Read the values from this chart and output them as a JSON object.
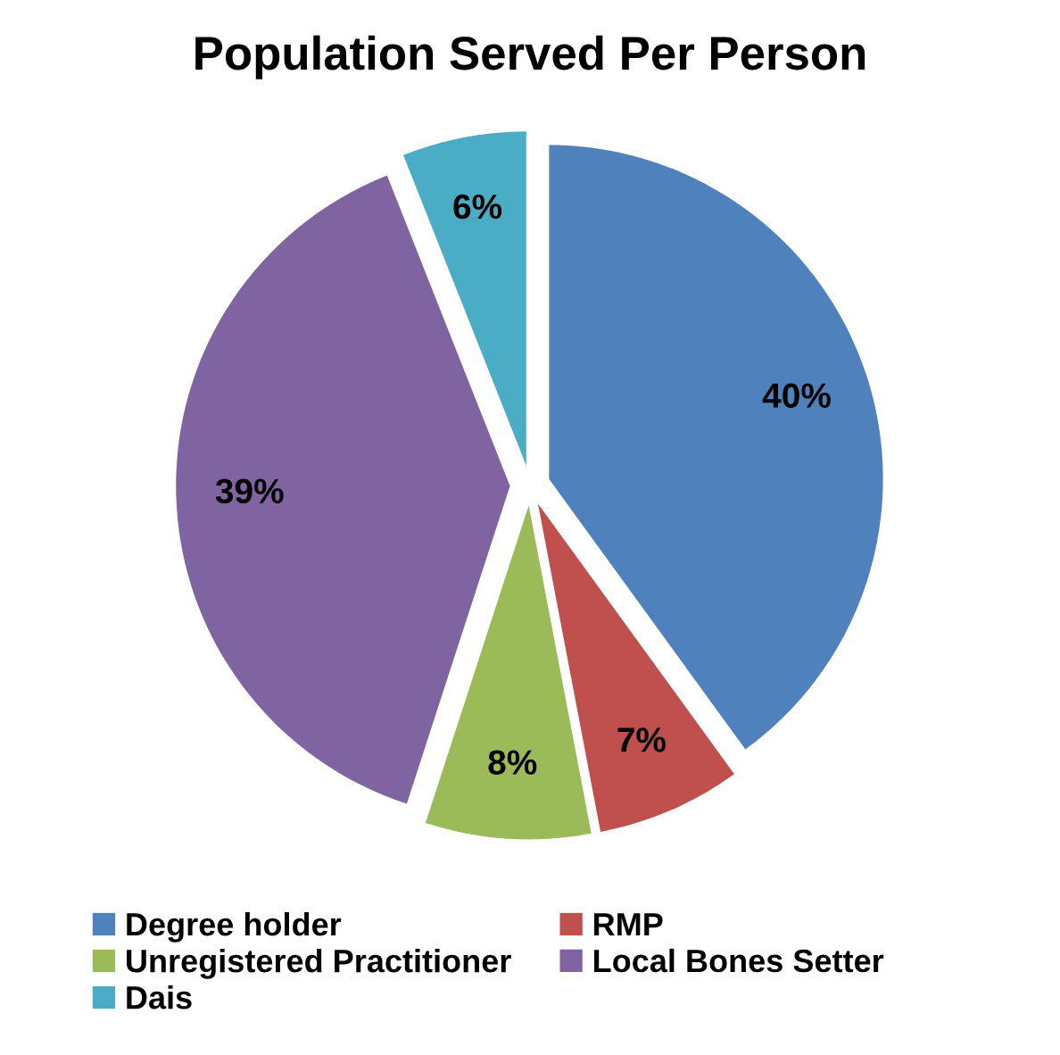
{
  "chart_data": {
    "type": "pie",
    "title": "Population Served Per Person",
    "categories": [
      "Degree holder",
      "RMP",
      "Unregistered Practitioner",
      "Local Bones Setter",
      "Dais"
    ],
    "values": [
      40,
      7,
      8,
      39,
      6
    ],
    "colors": [
      "#4f81bd",
      "#c0504d",
      "#9bbb59",
      "#8064a2",
      "#4bacc6"
    ],
    "value_labels": [
      "40%",
      "7%",
      "8%",
      "39%",
      "6%"
    ],
    "legend": "bottom"
  }
}
